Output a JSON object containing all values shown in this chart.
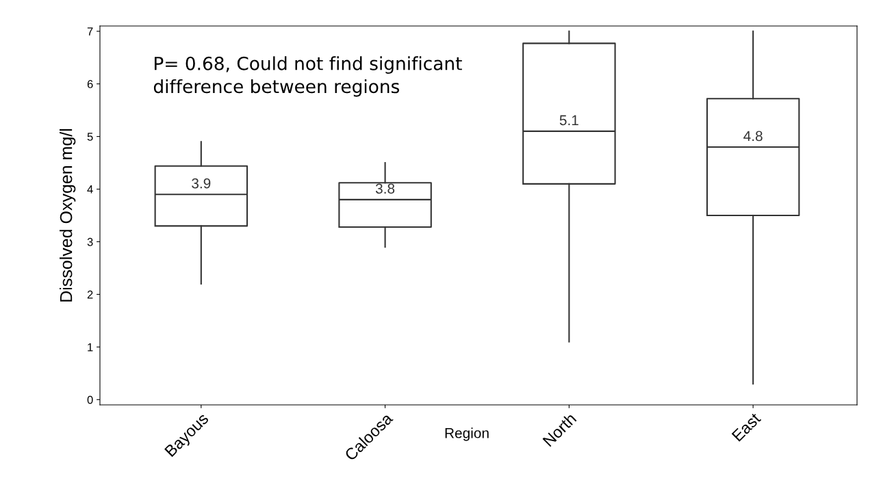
{
  "chart_data": {
    "type": "box",
    "xlabel": "Region",
    "ylabel": "Dissolved Oxygen mg/l",
    "categories": [
      "Bayous",
      "Caloosa",
      "North",
      "East"
    ],
    "boxes": [
      {
        "low": 2.2,
        "q1": 3.3,
        "median": 3.9,
        "q3": 4.44,
        "high": 4.9
      },
      {
        "low": 2.9,
        "q1": 3.28,
        "median": 3.8,
        "q3": 4.12,
        "high": 4.5
      },
      {
        "low": 1.1,
        "q1": 4.1,
        "median": 5.1,
        "q3": 6.77,
        "high": 7.0
      },
      {
        "low": 0.3,
        "q1": 3.5,
        "median": 4.8,
        "q3": 5.72,
        "high": 7.0
      }
    ],
    "ylim": [
      -0.1,
      7.1
    ],
    "yticks": [
      0,
      1,
      2,
      3,
      4,
      5,
      6,
      7
    ],
    "grid": false,
    "annotations": [
      {
        "text": "P= 0.68, Could not find significant\ndifference between regions"
      },
      {
        "text": "3.9",
        "x": "Bayous",
        "y": 3.9
      },
      {
        "text": "3.8",
        "x": "Caloosa",
        "y": 3.8
      },
      {
        "text": "5.1",
        "x": "North",
        "y": 5.1
      },
      {
        "text": "4.8",
        "x": "East",
        "y": 4.8
      }
    ]
  }
}
